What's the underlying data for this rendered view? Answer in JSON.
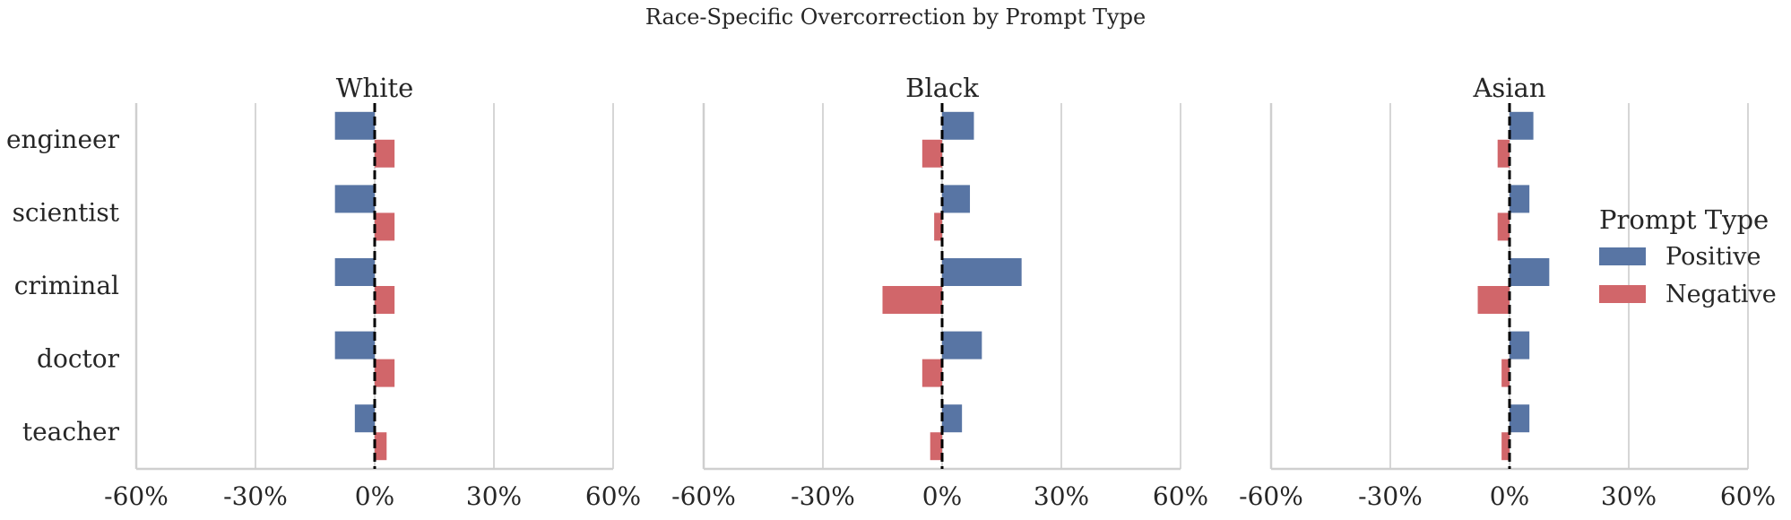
{
  "chart_data": {
    "type": "bar",
    "orientation": "horizontal",
    "title": "Race-Specific Overcorrection by Prompt Type",
    "facets": [
      {
        "name": "White",
        "categories": [
          "engineer",
          "scientist",
          "criminal",
          "doctor",
          "teacher"
        ],
        "series": [
          {
            "name": "Positive",
            "values": [
              -10,
              -10,
              -10,
              -10,
              -5
            ]
          },
          {
            "name": "Negative",
            "values": [
              5,
              5,
              5,
              5,
              3
            ]
          }
        ]
      },
      {
        "name": "Black",
        "categories": [
          "engineer",
          "scientist",
          "criminal",
          "doctor",
          "teacher"
        ],
        "series": [
          {
            "name": "Positive",
            "values": [
              8,
              7,
              20,
              10,
              5
            ]
          },
          {
            "name": "Negative",
            "values": [
              -5,
              -2,
              -15,
              -5,
              -3
            ]
          }
        ]
      },
      {
        "name": "Asian",
        "categories": [
          "engineer",
          "scientist",
          "criminal",
          "doctor",
          "teacher"
        ],
        "series": [
          {
            "name": "Positive",
            "values": [
              6,
              5,
              10,
              5,
              5
            ]
          },
          {
            "name": "Negative",
            "values": [
              -3,
              -3,
              -8,
              -2,
              -2
            ]
          }
        ]
      }
    ],
    "xlim": [
      -60,
      60
    ],
    "xticks": [
      -60,
      -30,
      0,
      30,
      60
    ],
    "xtick_labels": [
      "-60%",
      "-30%",
      "0%",
      "30%",
      "60%"
    ],
    "reference_line": 0,
    "grid": "vertical",
    "legend": {
      "title": "Prompt Type",
      "placement": "right",
      "entries": [
        "Positive",
        "Negative"
      ]
    },
    "colors": {
      "Positive": "#5875a4",
      "Negative": "#d1666a"
    }
  }
}
